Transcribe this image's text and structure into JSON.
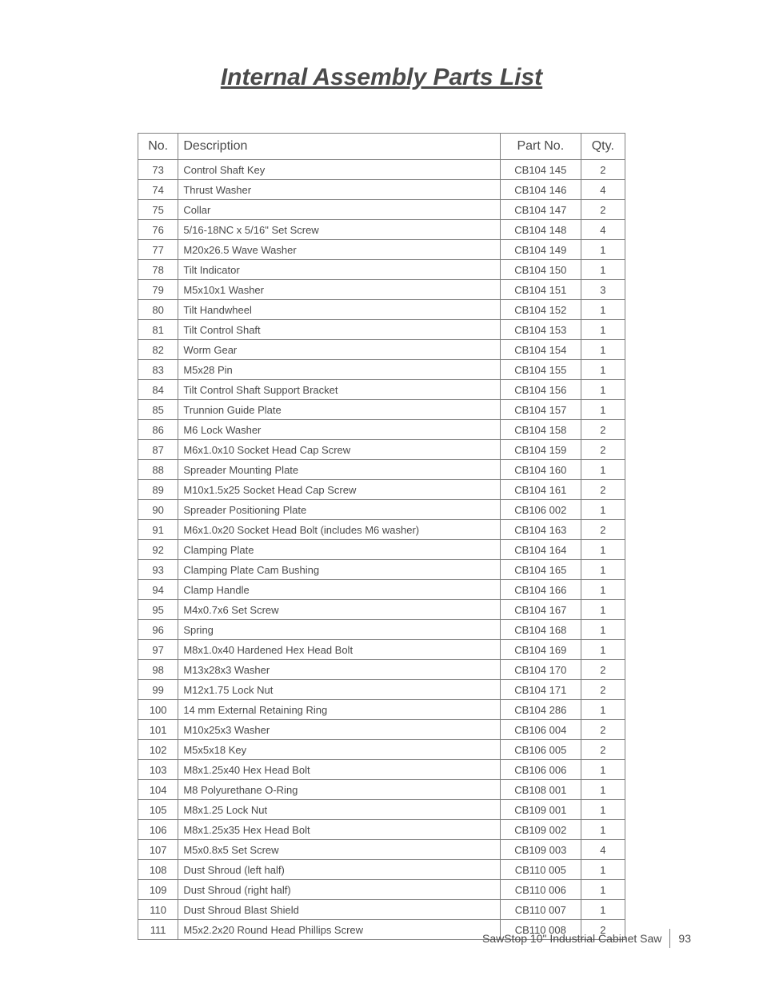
{
  "title": "Internal Assembly Parts List",
  "table": {
    "headers": {
      "no": "No.",
      "description": "Description",
      "partNo": "Part No.",
      "qty": "Qty."
    },
    "rows": [
      {
        "no": "73",
        "desc": "Control Shaft Key",
        "part": "CB104 145",
        "qty": "2"
      },
      {
        "no": "74",
        "desc": "Thrust Washer",
        "part": "CB104 146",
        "qty": "4"
      },
      {
        "no": "75",
        "desc": "Collar",
        "part": "CB104 147",
        "qty": "2"
      },
      {
        "no": "76",
        "desc": "5/16-18NC x 5/16\" Set Screw",
        "part": "CB104 148",
        "qty": "4"
      },
      {
        "no": "77",
        "desc": "M20x26.5 Wave Washer",
        "part": "CB104 149",
        "qty": "1"
      },
      {
        "no": "78",
        "desc": "Tilt Indicator",
        "part": "CB104 150",
        "qty": "1"
      },
      {
        "no": "79",
        "desc": "M5x10x1 Washer",
        "part": "CB104 151",
        "qty": "3"
      },
      {
        "no": "80",
        "desc": "Tilt Handwheel",
        "part": "CB104 152",
        "qty": "1"
      },
      {
        "no": "81",
        "desc": "Tilt Control Shaft",
        "part": "CB104 153",
        "qty": "1"
      },
      {
        "no": "82",
        "desc": "Worm Gear",
        "part": "CB104 154",
        "qty": "1"
      },
      {
        "no": "83",
        "desc": "M5x28 Pin",
        "part": "CB104 155",
        "qty": "1"
      },
      {
        "no": "84",
        "desc": "Tilt Control Shaft Support Bracket",
        "part": "CB104 156",
        "qty": "1"
      },
      {
        "no": "85",
        "desc": "Trunnion Guide Plate",
        "part": "CB104 157",
        "qty": "1"
      },
      {
        "no": "86",
        "desc": "M6 Lock Washer",
        "part": "CB104 158",
        "qty": "2"
      },
      {
        "no": "87",
        "desc": "M6x1.0x10 Socket Head Cap Screw",
        "part": "CB104 159",
        "qty": "2"
      },
      {
        "no": "88",
        "desc": "Spreader Mounting Plate",
        "part": "CB104 160",
        "qty": "1"
      },
      {
        "no": "89",
        "desc": "M10x1.5x25 Socket Head Cap Screw",
        "part": "CB104 161",
        "qty": "2"
      },
      {
        "no": "90",
        "desc": "Spreader Positioning Plate",
        "part": "CB106 002",
        "qty": "1"
      },
      {
        "no": "91",
        "desc": "M6x1.0x20 Socket Head Bolt (includes M6 washer)",
        "part": "CB104 163",
        "qty": "2"
      },
      {
        "no": "92",
        "desc": "Clamping Plate",
        "part": "CB104 164",
        "qty": "1"
      },
      {
        "no": "93",
        "desc": "Clamping Plate Cam Bushing",
        "part": "CB104 165",
        "qty": "1"
      },
      {
        "no": "94",
        "desc": "Clamp Handle",
        "part": "CB104 166",
        "qty": "1"
      },
      {
        "no": "95",
        "desc": "M4x0.7x6 Set Screw",
        "part": "CB104 167",
        "qty": "1"
      },
      {
        "no": "96",
        "desc": "Spring",
        "part": "CB104 168",
        "qty": "1"
      },
      {
        "no": "97",
        "desc": "M8x1.0x40 Hardened Hex Head Bolt",
        "part": "CB104 169",
        "qty": "1"
      },
      {
        "no": "98",
        "desc": "M13x28x3 Washer",
        "part": "CB104 170",
        "qty": "2"
      },
      {
        "no": "99",
        "desc": "M12x1.75 Lock Nut",
        "part": "CB104 171",
        "qty": "2"
      },
      {
        "no": "100",
        "desc": "14 mm External Retaining Ring",
        "part": "CB104 286",
        "qty": "1"
      },
      {
        "no": "101",
        "desc": "M10x25x3 Washer",
        "part": "CB106 004",
        "qty": "2"
      },
      {
        "no": "102",
        "desc": "M5x5x18 Key",
        "part": "CB106 005",
        "qty": "2"
      },
      {
        "no": "103",
        "desc": "M8x1.25x40 Hex Head Bolt",
        "part": "CB106 006",
        "qty": "1"
      },
      {
        "no": "104",
        "desc": "M8 Polyurethane O-Ring",
        "part": "CB108 001",
        "qty": "1"
      },
      {
        "no": "105",
        "desc": "M8x1.25 Lock Nut",
        "part": "CB109 001",
        "qty": "1"
      },
      {
        "no": "106",
        "desc": "M8x1.25x35 Hex Head Bolt",
        "part": "CB109 002",
        "qty": "1"
      },
      {
        "no": "107",
        "desc": "M5x0.8x5 Set Screw",
        "part": "CB109 003",
        "qty": "4"
      },
      {
        "no": "108",
        "desc": "Dust Shroud (left half)",
        "part": "CB110 005",
        "qty": "1"
      },
      {
        "no": "109",
        "desc": "Dust Shroud (right half)",
        "part": "CB110 006",
        "qty": "1"
      },
      {
        "no": "110",
        "desc": "Dust Shroud Blast Shield",
        "part": "CB110 007",
        "qty": "1"
      },
      {
        "no": "111",
        "desc": "M5x2.2x20 Round Head Phillips Screw",
        "part": "CB110 008",
        "qty": "2"
      }
    ]
  },
  "footer": {
    "text": "SawStop 10\" Industrial Cabinet Saw",
    "page": "93"
  }
}
